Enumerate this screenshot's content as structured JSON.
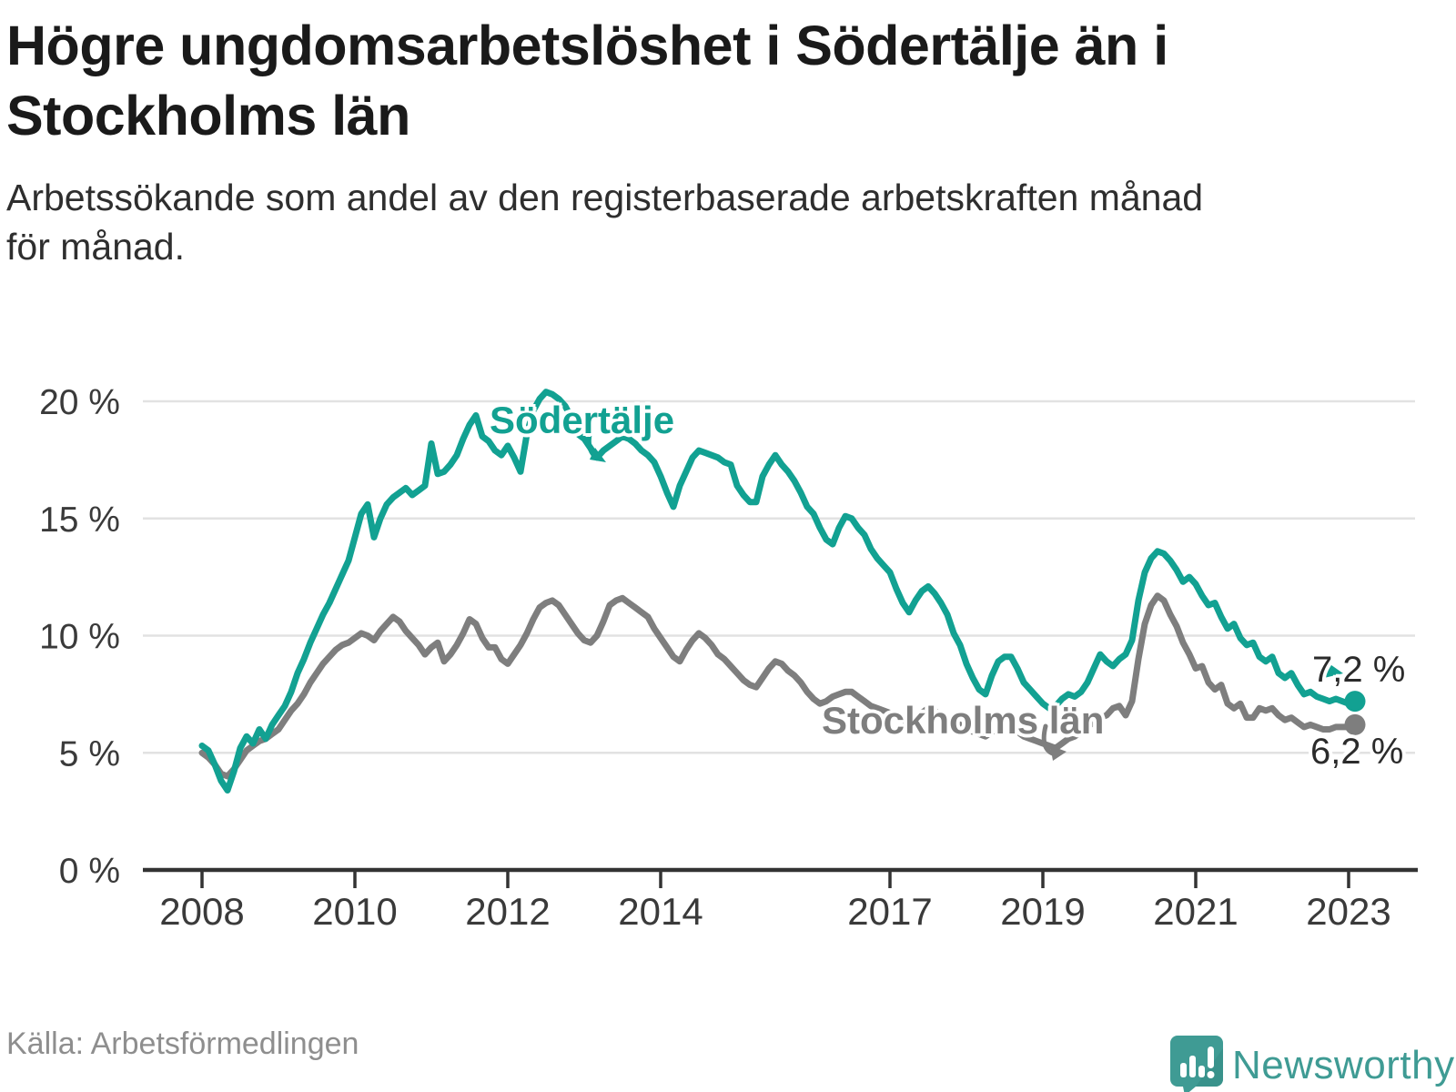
{
  "header": {
    "title_lines": [
      "Högre ungdomsarbetslöshet i Södertälje än i",
      "Stockholms län"
    ],
    "subtitle_lines": [
      "Arbetssökande som andel av den registerbaserade arbetskraften månad",
      "för månad."
    ]
  },
  "footer": {
    "source": "Källa: Arbetsförmedlingen",
    "logo_text": "Newsworthy"
  },
  "colors": {
    "sodertalje": "#12a192",
    "stockholm": "#7e7e7e",
    "grid": "#e2e2e2",
    "axis": "#333333",
    "logo_teal": "#3f9b94"
  },
  "chart_data": {
    "type": "line",
    "unit": "%",
    "frequency": "monthly",
    "x_start": "2008-01",
    "x_end": "2023-02",
    "ylim": [
      0,
      21
    ],
    "grid": "horizontal",
    "legend_position": "inline-labels",
    "x_ticks": [
      {
        "year": 2008,
        "label": "2008"
      },
      {
        "year": 2010,
        "label": "2010"
      },
      {
        "year": 2012,
        "label": "2012"
      },
      {
        "year": 2014,
        "label": "2014"
      },
      {
        "year": 2017,
        "label": "2017"
      },
      {
        "year": 2019,
        "label": "2019"
      },
      {
        "year": 2021,
        "label": "2021"
      },
      {
        "year": 2023,
        "label": "2023"
      }
    ],
    "y_ticks": [
      {
        "value": 0,
        "label": "0 %"
      },
      {
        "value": 5,
        "label": "5 %"
      },
      {
        "value": 10,
        "label": "10 %"
      },
      {
        "value": 15,
        "label": "15 %"
      },
      {
        "value": 20,
        "label": "20 %"
      }
    ],
    "series": [
      {
        "name": "Södertälje",
        "color": "#12a192",
        "end_label": "7,2 %",
        "values": [
          5.3,
          5.1,
          4.5,
          3.8,
          3.4,
          4.2,
          5.2,
          5.7,
          5.4,
          6.0,
          5.6,
          6.2,
          6.6,
          7.0,
          7.6,
          8.4,
          9.0,
          9.7,
          10.3,
          10.9,
          11.4,
          12.0,
          12.6,
          13.2,
          14.2,
          15.2,
          15.6,
          14.2,
          15.0,
          15.6,
          15.9,
          16.1,
          16.3,
          16.0,
          16.2,
          16.4,
          18.2,
          16.9,
          17.0,
          17.3,
          17.7,
          18.4,
          19.0,
          19.4,
          18.5,
          18.3,
          17.9,
          17.7,
          18.1,
          17.6,
          17.0,
          18.6,
          19.6,
          20.1,
          20.4,
          20.3,
          20.1,
          19.8,
          19.3,
          18.6,
          18.4,
          18.0,
          17.6,
          17.9,
          18.1,
          18.3,
          18.5,
          18.4,
          18.2,
          17.9,
          17.7,
          17.4,
          16.8,
          16.1,
          15.5,
          16.4,
          17.0,
          17.6,
          17.9,
          17.8,
          17.7,
          17.6,
          17.4,
          17.3,
          16.4,
          16.0,
          15.7,
          15.7,
          16.8,
          17.3,
          17.7,
          17.3,
          17.0,
          16.6,
          16.1,
          15.5,
          15.2,
          14.6,
          14.1,
          13.9,
          14.6,
          15.1,
          15.0,
          14.6,
          14.3,
          13.7,
          13.3,
          13.0,
          12.7,
          12.0,
          11.4,
          11.0,
          11.5,
          11.9,
          12.1,
          11.8,
          11.4,
          10.9,
          10.1,
          9.6,
          8.8,
          8.2,
          7.7,
          7.5,
          8.3,
          8.9,
          9.1,
          9.1,
          8.6,
          8.0,
          7.7,
          7.4,
          7.1,
          6.9,
          7.0,
          7.3,
          7.5,
          7.4,
          7.6,
          8.0,
          8.6,
          9.2,
          8.9,
          8.7,
          9.0,
          9.2,
          9.8,
          11.5,
          12.7,
          13.3,
          13.6,
          13.5,
          13.2,
          12.8,
          12.3,
          12.5,
          12.2,
          11.7,
          11.3,
          11.4,
          10.8,
          10.3,
          10.5,
          9.9,
          9.6,
          9.7,
          9.1,
          8.9,
          9.1,
          8.4,
          8.2,
          8.4,
          7.9,
          7.5,
          7.6,
          7.4,
          7.3,
          7.2,
          7.3,
          7.2,
          7.1,
          7.2
        ]
      },
      {
        "name": "Stockholms län",
        "color": "#7e7e7e",
        "end_label": "6,2 %",
        "values": [
          5.0,
          4.8,
          4.5,
          4.1,
          4.0,
          4.3,
          4.7,
          5.1,
          5.3,
          5.5,
          5.6,
          5.8,
          6.0,
          6.4,
          6.8,
          7.1,
          7.5,
          8.0,
          8.4,
          8.8,
          9.1,
          9.4,
          9.6,
          9.7,
          9.9,
          10.1,
          10.0,
          9.8,
          10.2,
          10.5,
          10.8,
          10.6,
          10.2,
          9.9,
          9.6,
          9.2,
          9.5,
          9.7,
          8.9,
          9.2,
          9.6,
          10.1,
          10.7,
          10.5,
          9.9,
          9.5,
          9.5,
          9.0,
          8.8,
          9.2,
          9.6,
          10.1,
          10.7,
          11.2,
          11.4,
          11.5,
          11.3,
          10.9,
          10.5,
          10.1,
          9.8,
          9.7,
          10.0,
          10.6,
          11.3,
          11.5,
          11.6,
          11.4,
          11.2,
          11.0,
          10.8,
          10.3,
          9.9,
          9.5,
          9.1,
          8.9,
          9.4,
          9.8,
          10.1,
          9.9,
          9.6,
          9.2,
          9.0,
          8.7,
          8.4,
          8.1,
          7.9,
          7.8,
          8.2,
          8.6,
          8.9,
          8.8,
          8.5,
          8.3,
          8.0,
          7.6,
          7.3,
          7.1,
          7.2,
          7.4,
          7.5,
          7.6,
          7.6,
          7.4,
          7.2,
          7.0,
          6.9,
          6.8,
          6.7,
          6.5,
          6.4,
          6.3,
          6.5,
          6.7,
          6.9,
          6.8,
          6.6,
          6.4,
          6.3,
          6.2,
          6.0,
          5.9,
          5.8,
          5.7,
          5.9,
          6.1,
          6.2,
          6.1,
          5.9,
          5.7,
          5.6,
          5.5,
          5.4,
          5.3,
          5.2,
          5.4,
          5.6,
          5.7,
          5.9,
          6.1,
          6.3,
          6.5,
          6.6,
          6.9,
          7.0,
          6.6,
          7.2,
          9.0,
          10.5,
          11.3,
          11.7,
          11.5,
          10.9,
          10.4,
          9.7,
          9.2,
          8.6,
          8.7,
          8.0,
          7.7,
          7.9,
          7.1,
          6.9,
          7.1,
          6.5,
          6.5,
          6.9,
          6.8,
          6.9,
          6.6,
          6.4,
          6.5,
          6.3,
          6.1,
          6.2,
          6.1,
          6.0,
          6.0,
          6.1,
          6.1,
          6.1,
          6.2
        ]
      }
    ]
  }
}
